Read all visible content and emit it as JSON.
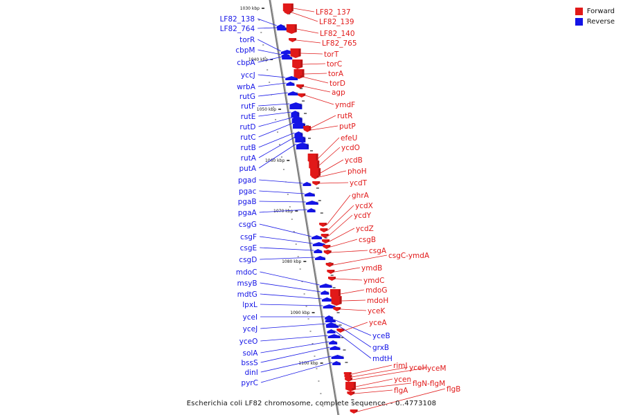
{
  "colors": {
    "forward": "#e11919",
    "reverse": "#1414e6",
    "axis": "#7a7a7a",
    "tick": "#111111"
  },
  "legend": [
    {
      "label": "Forward",
      "color": "#e11919"
    },
    {
      "label": "Reverse",
      "color": "#1414e6"
    }
  ],
  "caption": "Escherichia coli LF82 chromosome, complete sequence. - 0..4773108",
  "ticks": [
    "1030 kbp",
    "1040 kbp",
    "1050 kbp",
    "1060 kbp",
    "1070 kbp",
    "1080 kbp",
    "1090 kbp",
    "1100 kbp"
  ],
  "reverse_genes": [
    "LF82_138",
    "LF82_764",
    "torR",
    "cbpM",
    "cbpA",
    "yccJ",
    "wrbA",
    "rutG",
    "rutF",
    "rutE",
    "rutD",
    "rutC",
    "rutB",
    "rutA",
    "putA",
    "pgad",
    "pgac",
    "pgaB",
    "pgaA",
    "csgG",
    "csgF",
    "csgE",
    "csgD",
    "mdoC",
    "msyB",
    "mdtG",
    "lpxL",
    "yceI",
    "yceJ",
    "yceO",
    "solA",
    "bssS",
    "dinI",
    "pyrC",
    "yceB",
    "grxB",
    "mdtH"
  ],
  "forward_genes": [
    "LF82_137",
    "LF82_139",
    "LF82_140",
    "LF82_765",
    "torT",
    "torC",
    "torA",
    "torD",
    "agp",
    "ymdF",
    "rutR",
    "putP",
    "efeU",
    "ycdO",
    "ycdB",
    "phoH",
    "ycdT",
    "ghrA",
    "ycdX",
    "ycdY",
    "ycdZ",
    "csgB",
    "csgA",
    "csgC-ymdA",
    "ymdB",
    "ymdC",
    "mdoG",
    "mdoH",
    "yceK",
    "yceA",
    "rimJ",
    "yceH",
    "yceM",
    "ycen",
    "flgN-flgM",
    "flgA",
    "flgB"
  ]
}
